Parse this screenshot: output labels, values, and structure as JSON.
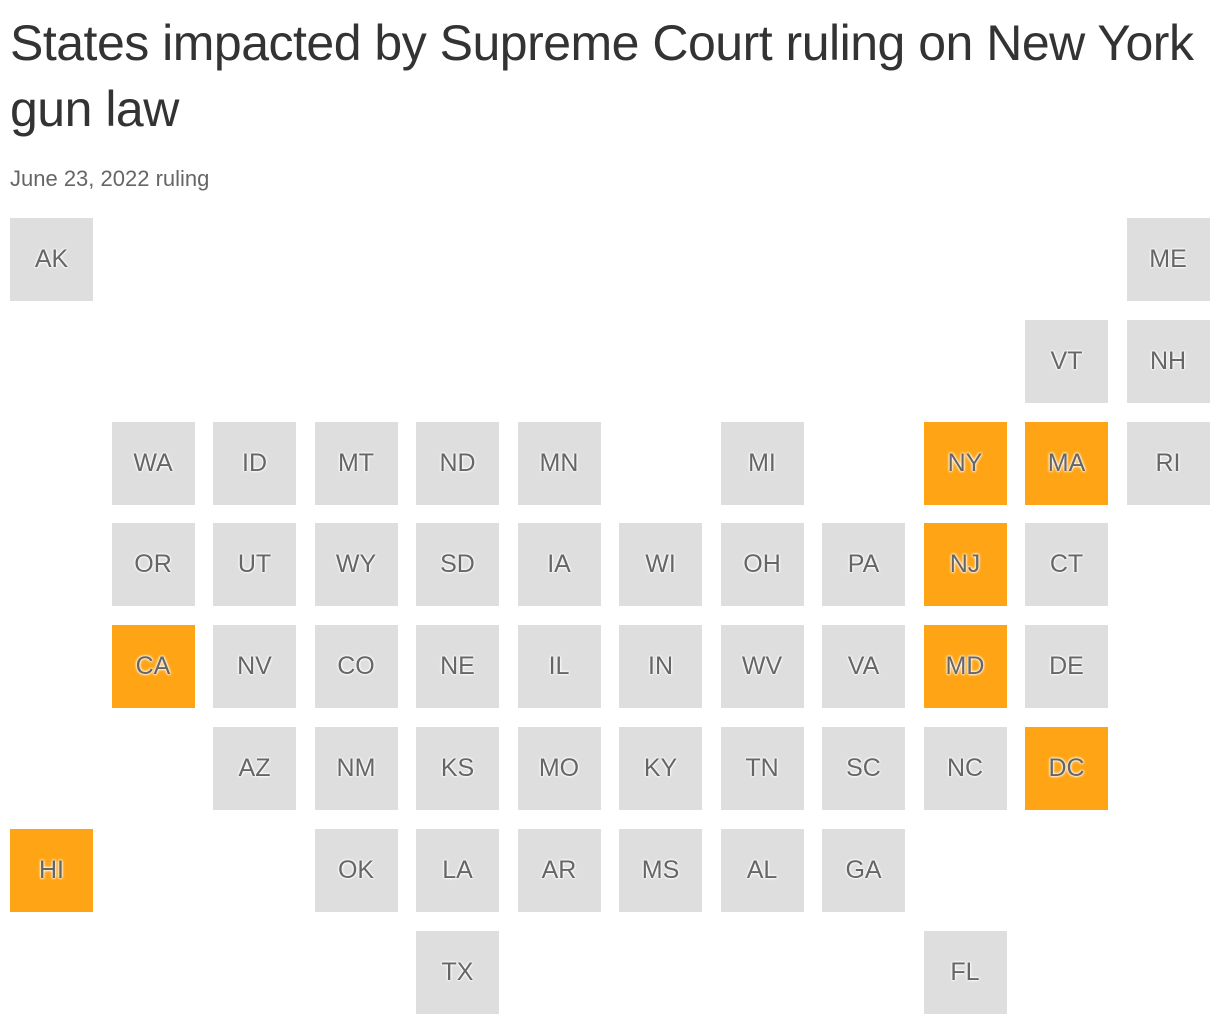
{
  "title": "States impacted by Supreme Court ruling on New York gun law",
  "subtitle": "June 23, 2022 ruling",
  "colors": {
    "impacted": "#ffa515",
    "other": "#dedede"
  },
  "tiles": [
    {
      "label": "AK",
      "impacted": false
    },
    {
      "label": "ME",
      "impacted": false
    },
    {
      "label": "VT",
      "impacted": false
    },
    {
      "label": "NH",
      "impacted": false
    },
    {
      "label": "WA",
      "impacted": false
    },
    {
      "label": "ID",
      "impacted": false
    },
    {
      "label": "MT",
      "impacted": false
    },
    {
      "label": "ND",
      "impacted": false
    },
    {
      "label": "MN",
      "impacted": false
    },
    {
      "label": "MI",
      "impacted": false
    },
    {
      "label": "NY",
      "impacted": true
    },
    {
      "label": "MA",
      "impacted": true
    },
    {
      "label": "RI",
      "impacted": false
    },
    {
      "label": "OR",
      "impacted": false
    },
    {
      "label": "UT",
      "impacted": false
    },
    {
      "label": "WY",
      "impacted": false
    },
    {
      "label": "SD",
      "impacted": false
    },
    {
      "label": "IA",
      "impacted": false
    },
    {
      "label": "WI",
      "impacted": false
    },
    {
      "label": "OH",
      "impacted": false
    },
    {
      "label": "PA",
      "impacted": false
    },
    {
      "label": "NJ",
      "impacted": true
    },
    {
      "label": "CT",
      "impacted": false
    },
    {
      "label": "CA",
      "impacted": true
    },
    {
      "label": "NV",
      "impacted": false
    },
    {
      "label": "CO",
      "impacted": false
    },
    {
      "label": "NE",
      "impacted": false
    },
    {
      "label": "IL",
      "impacted": false
    },
    {
      "label": "IN",
      "impacted": false
    },
    {
      "label": "WV",
      "impacted": false
    },
    {
      "label": "VA",
      "impacted": false
    },
    {
      "label": "MD",
      "impacted": true
    },
    {
      "label": "DE",
      "impacted": false
    },
    {
      "label": "AZ",
      "impacted": false
    },
    {
      "label": "NM",
      "impacted": false
    },
    {
      "label": "KS",
      "impacted": false
    },
    {
      "label": "MO",
      "impacted": false
    },
    {
      "label": "KY",
      "impacted": false
    },
    {
      "label": "TN",
      "impacted": false
    },
    {
      "label": "SC",
      "impacted": false
    },
    {
      "label": "NC",
      "impacted": false
    },
    {
      "label": "DC",
      "impacted": true
    },
    {
      "label": "HI",
      "impacted": true
    },
    {
      "label": "OK",
      "impacted": false
    },
    {
      "label": "LA",
      "impacted": false
    },
    {
      "label": "AR",
      "impacted": false
    },
    {
      "label": "MS",
      "impacted": false
    },
    {
      "label": "AL",
      "impacted": false
    },
    {
      "label": "GA",
      "impacted": false
    },
    {
      "label": "TX",
      "impacted": false
    },
    {
      "label": "FL",
      "impacted": false
    }
  ]
}
